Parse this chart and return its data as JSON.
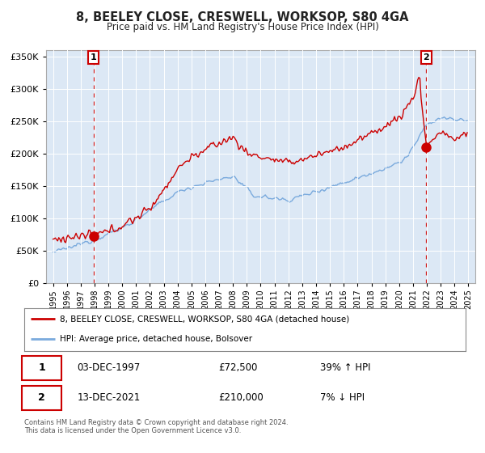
{
  "title": "8, BEELEY CLOSE, CRESWELL, WORKSOP, S80 4GA",
  "subtitle": "Price paid vs. HM Land Registry's House Price Index (HPI)",
  "legend_entry1": "8, BEELEY CLOSE, CRESWELL, WORKSOP, S80 4GA (detached house)",
  "legend_entry2": "HPI: Average price, detached house, Bolsover",
  "transaction1_label": "03-DEC-1997",
  "transaction1_price": "£72,500",
  "transaction1_hpi": "39% ↑ HPI",
  "transaction2_label": "13-DEC-2021",
  "transaction2_price": "£210,000",
  "transaction2_hpi": "7% ↓ HPI",
  "footer": "Contains HM Land Registry data © Crown copyright and database right 2024.\nThis data is licensed under the Open Government Licence v3.0.",
  "hpi_color": "#7aaadd",
  "price_color": "#cc0000",
  "transaction1_date_x": 1997.92,
  "transaction2_date_x": 2021.96,
  "transaction1_price_y": 72500,
  "transaction2_price_y": 210000,
  "xlim": [
    1994.5,
    2025.5
  ],
  "ylim": [
    0,
    360000
  ],
  "yticks": [
    0,
    50000,
    100000,
    150000,
    200000,
    250000,
    300000,
    350000
  ],
  "xticks": [
    1995,
    1996,
    1997,
    1998,
    1999,
    2000,
    2001,
    2002,
    2003,
    2004,
    2005,
    2006,
    2007,
    2008,
    2009,
    2010,
    2011,
    2012,
    2013,
    2014,
    2015,
    2016,
    2017,
    2018,
    2019,
    2020,
    2021,
    2022,
    2023,
    2024,
    2025
  ],
  "plot_bg_color": "#dce8f5",
  "fig_bg_color": "#ffffff",
  "grid_color": "#ffffff"
}
